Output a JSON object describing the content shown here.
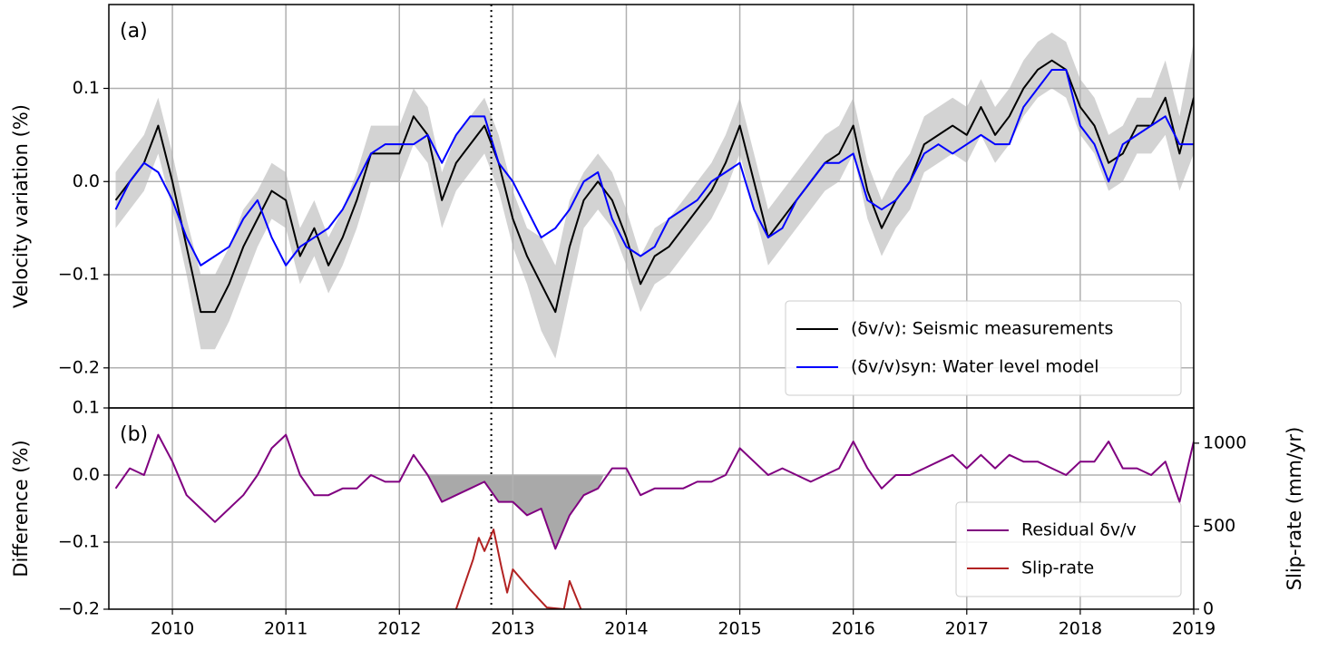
{
  "chart_data": [
    {
      "type": "line",
      "panel_label": "(a)",
      "ylabel": "Velocity variation (%)",
      "x": [
        2009.5,
        2009.625,
        2009.75,
        2009.875,
        2010,
        2010.125,
        2010.25,
        2010.375,
        2010.5,
        2010.625,
        2010.75,
        2010.875,
        2011,
        2011.125,
        2011.25,
        2011.375,
        2011.5,
        2011.625,
        2011.75,
        2011.875,
        2012,
        2012.125,
        2012.25,
        2012.375,
        2012.5,
        2012.625,
        2012.75,
        2012.875,
        2013,
        2013.125,
        2013.25,
        2013.375,
        2013.5,
        2013.625,
        2013.75,
        2013.875,
        2014,
        2014.125,
        2014.25,
        2014.375,
        2014.5,
        2014.625,
        2014.75,
        2014.875,
        2015,
        2015.125,
        2015.25,
        2015.375,
        2015.5,
        2015.625,
        2015.75,
        2015.875,
        2016,
        2016.125,
        2016.25,
        2016.375,
        2016.5,
        2016.625,
        2016.75,
        2016.875,
        2017,
        2017.125,
        2017.25,
        2017.375,
        2017.5,
        2017.625,
        2017.75,
        2017.875,
        2018,
        2018.125,
        2018.25,
        2018.375,
        2018.5,
        2018.625,
        2018.75,
        2018.875,
        2019
      ],
      "xlim": [
        2009.44,
        2019
      ],
      "xticks": [
        2010,
        2011,
        2012,
        2013,
        2014,
        2015,
        2016,
        2017,
        2018,
        2019
      ],
      "ylim": [
        -0.243,
        0.19
      ],
      "yticks": [
        {
          "value": -0.2,
          "label": "−0.2"
        },
        {
          "value": -0.1,
          "label": "−0.1"
        },
        {
          "value": 0,
          "label": "0.0"
        },
        0.1
      ],
      "grid": true,
      "legend": "lower right",
      "marker_x": 2012.81,
      "band": {
        "color": "#d3d3d3",
        "error": [
          0.03,
          0.03,
          0.03,
          0.03,
          0.03,
          0.03,
          0.04,
          0.04,
          0.04,
          0.04,
          0.03,
          0.03,
          0.03,
          0.03,
          0.03,
          0.03,
          0.03,
          0.03,
          0.03,
          0.03,
          0.03,
          0.03,
          0.03,
          0.03,
          0.03,
          0.03,
          0.03,
          0.03,
          0.03,
          0.03,
          0.05,
          0.05,
          0.05,
          0.03,
          0.03,
          0.03,
          0.03,
          0.03,
          0.03,
          0.03,
          0.03,
          0.03,
          0.03,
          0.03,
          0.03,
          0.03,
          0.03,
          0.03,
          0.03,
          0.03,
          0.03,
          0.03,
          0.03,
          0.03,
          0.03,
          0.03,
          0.03,
          0.03,
          0.03,
          0.03,
          0.03,
          0.03,
          0.03,
          0.03,
          0.03,
          0.03,
          0.03,
          0.03,
          0.03,
          0.03,
          0.03,
          0.03,
          0.03,
          0.03,
          0.04,
          0.04,
          0.06
        ]
      },
      "series": [
        {
          "name": "(δv/v): Seismic measurements",
          "color": "#000000",
          "values": [
            -0.02,
            0.0,
            0.02,
            0.06,
            0.0,
            -0.07,
            -0.14,
            -0.14,
            -0.11,
            -0.07,
            -0.04,
            -0.01,
            -0.02,
            -0.08,
            -0.05,
            -0.09,
            -0.06,
            -0.02,
            0.03,
            0.03,
            0.03,
            0.07,
            0.05,
            -0.02,
            0.02,
            0.04,
            0.06,
            0.02,
            -0.04,
            -0.08,
            -0.11,
            -0.14,
            -0.07,
            -0.02,
            0.0,
            -0.02,
            -0.06,
            -0.11,
            -0.08,
            -0.07,
            -0.05,
            -0.03,
            -0.01,
            0.02,
            0.06,
            0.0,
            -0.06,
            -0.04,
            -0.02,
            0.0,
            0.02,
            0.03,
            0.06,
            -0.01,
            -0.05,
            -0.02,
            0.0,
            0.04,
            0.05,
            0.06,
            0.05,
            0.08,
            0.05,
            0.07,
            0.1,
            0.12,
            0.13,
            0.12,
            0.08,
            0.06,
            0.02,
            0.03,
            0.06,
            0.06,
            0.09,
            0.03,
            0.09
          ]
        },
        {
          "name": "(δv/v)syn: Water level model",
          "color": "#0000ff",
          "values": [
            -0.03,
            0.0,
            0.02,
            0.01,
            -0.02,
            -0.06,
            -0.09,
            -0.08,
            -0.07,
            -0.04,
            -0.02,
            -0.06,
            -0.09,
            -0.07,
            -0.06,
            -0.05,
            -0.03,
            0.0,
            0.03,
            0.04,
            0.04,
            0.04,
            0.05,
            0.02,
            0.05,
            0.07,
            0.07,
            0.02,
            0.0,
            -0.03,
            -0.06,
            -0.05,
            -0.03,
            0.0,
            0.01,
            -0.04,
            -0.07,
            -0.08,
            -0.07,
            -0.04,
            -0.03,
            -0.02,
            0.0,
            0.01,
            0.02,
            -0.03,
            -0.06,
            -0.05,
            -0.02,
            0.0,
            0.02,
            0.02,
            0.03,
            -0.02,
            -0.03,
            -0.02,
            0.0,
            0.03,
            0.04,
            0.03,
            0.04,
            0.05,
            0.04,
            0.04,
            0.08,
            0.1,
            0.12,
            0.12,
            0.06,
            0.04,
            0.0,
            0.04,
            0.05,
            0.06,
            0.07,
            0.04,
            0.04
          ]
        }
      ]
    },
    {
      "type": "line",
      "panel_label": "(b)",
      "ylabel": "Difference (%)",
      "y2label": "Slip-rate (mm/yr)",
      "x": [
        2009.5,
        2009.625,
        2009.75,
        2009.875,
        2010,
        2010.125,
        2010.25,
        2010.375,
        2010.5,
        2010.625,
        2010.75,
        2010.875,
        2011,
        2011.125,
        2011.25,
        2011.375,
        2011.5,
        2011.625,
        2011.75,
        2011.875,
        2012,
        2012.125,
        2012.25,
        2012.375,
        2012.5,
        2012.625,
        2012.75,
        2012.875,
        2013,
        2013.125,
        2013.25,
        2013.375,
        2013.5,
        2013.625,
        2013.75,
        2013.875,
        2014,
        2014.125,
        2014.25,
        2014.375,
        2014.5,
        2014.625,
        2014.75,
        2014.875,
        2015,
        2015.125,
        2015.25,
        2015.375,
        2015.5,
        2015.625,
        2015.75,
        2015.875,
        2016,
        2016.125,
        2016.25,
        2016.375,
        2016.5,
        2016.625,
        2016.75,
        2016.875,
        2017,
        2017.125,
        2017.25,
        2017.375,
        2017.5,
        2017.625,
        2017.75,
        2017.875,
        2018,
        2018.125,
        2018.25,
        2018.375,
        2018.5,
        2018.625,
        2018.75,
        2018.875,
        2019
      ],
      "xlim": [
        2009.44,
        2019
      ],
      "xticks": [
        2010,
        2011,
        2012,
        2013,
        2014,
        2015,
        2016,
        2017,
        2018,
        2019
      ],
      "ylim": [
        -0.2,
        0.1
      ],
      "yticks": [
        {
          "value": -0.2,
          "label": "−0.2"
        },
        {
          "value": -0.1,
          "label": "−0.1"
        },
        {
          "value": 0,
          "label": "0.0"
        },
        0.1
      ],
      "y2lim": [
        0,
        1212
      ],
      "y2ticks": [
        0,
        500,
        1000
      ],
      "grid": true,
      "legend": "lower right",
      "shade": {
        "color": "#a9a9a9",
        "xlim": [
          2012.25,
          2013.8
        ]
      },
      "series": [
        {
          "name": "Residual δv/v",
          "color": "#800080",
          "values": [
            -0.02,
            0.01,
            0.0,
            0.06,
            0.02,
            -0.03,
            -0.05,
            -0.07,
            -0.05,
            -0.03,
            0.0,
            0.04,
            0.06,
            0.0,
            -0.03,
            -0.03,
            -0.02,
            -0.02,
            0.0,
            -0.01,
            -0.01,
            0.03,
            0.0,
            -0.04,
            -0.03,
            -0.02,
            -0.01,
            -0.04,
            -0.04,
            -0.06,
            -0.05,
            -0.11,
            -0.06,
            -0.03,
            -0.02,
            0.01,
            0.01,
            -0.03,
            -0.02,
            -0.02,
            -0.02,
            -0.01,
            -0.01,
            0.0,
            0.04,
            0.02,
            0.0,
            0.01,
            0.0,
            -0.01,
            0.0,
            0.01,
            0.05,
            0.01,
            -0.02,
            0.0,
            0.0,
            0.01,
            0.02,
            0.03,
            0.01,
            0.03,
            0.01,
            0.03,
            0.02,
            0.02,
            0.01,
            0.0,
            0.02,
            0.02,
            0.05,
            0.01,
            0.01,
            0.0,
            0.02,
            -0.04,
            0.05
          ]
        },
        {
          "name": "Slip-rate",
          "color": "#b22222",
          "axis": "y2",
          "x": [
            2012.5,
            2012.65,
            2012.7,
            2012.75,
            2012.83,
            2012.9,
            2012.95,
            2013.0,
            2013.15,
            2013.3,
            2013.45,
            2013.5,
            2013.6
          ],
          "values": [
            0,
            300,
            430,
            350,
            480,
            250,
            100,
            240,
            120,
            10,
            0,
            170,
            0
          ]
        }
      ]
    }
  ]
}
